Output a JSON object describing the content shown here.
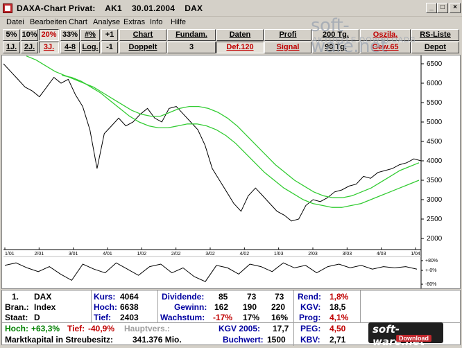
{
  "window": {
    "title": "DAXA-Chart Privat:    AK1    30.01.2004    DAX"
  },
  "menu": [
    "Datei",
    "Bearbeiten",
    "Chart",
    "Analyse",
    "Extras",
    "Info",
    "Hilfe"
  ],
  "toolbar_row1": [
    "5%",
    "10%",
    "20%",
    "33%",
    "#%",
    "+1",
    "Chart",
    "Fundam.",
    "Daten",
    "Profi",
    "200 Tg.",
    "Oszila.",
    "RS-Liste"
  ],
  "toolbar_row2": [
    "1J.",
    "2J.",
    "3J.",
    "4-8",
    "Log.",
    "-1",
    "Doppelt",
    "3",
    "Def.120",
    "Signal",
    "90 Tg.",
    "Gew.65",
    "Depot"
  ],
  "watermark": {
    "main": "soft-ware.net",
    "sub": "AKTUELLE DOWNLOADS"
  },
  "chart_data": {
    "type": "line",
    "x_ticks": [
      "1/01",
      "2/01",
      "3/01",
      "4/01",
      "1/02",
      "2/02",
      "3/02",
      "4/02",
      "1/03",
      "2/03",
      "3/03",
      "4/03",
      "1/04"
    ],
    "y_ticks": [
      "6500",
      "6000",
      "5500",
      "5000",
      "4500",
      "4000",
      "3500",
      "3000",
      "2500",
      "2000"
    ],
    "ylim": [
      2000,
      6500
    ],
    "series": [
      {
        "color": "#000000",
        "values": [
          6500,
          6300,
          6100,
          5900,
          5800,
          5650,
          5900,
          6150,
          6000,
          6100,
          5700,
          5400,
          4800,
          3800,
          4700,
          4900,
          5100,
          4900,
          5000,
          5200,
          5350,
          5100,
          5000,
          5350,
          5400,
          5200,
          5000,
          4800,
          4400,
          3800,
          3500,
          3200,
          2900,
          2700,
          3100,
          3300,
          3100,
          2900,
          2700,
          2600,
          2450,
          2500,
          2850,
          3000,
          2950,
          3050,
          3200,
          3250,
          3350,
          3400,
          3600,
          3550,
          3700,
          3750,
          3800,
          3900,
          3950,
          4050,
          4000
        ]
      },
      {
        "color": "#33cc33",
        "values": [
          6700,
          6600,
          6450,
          6300,
          6200,
          6100,
          6000,
          5900,
          5750,
          5600,
          5450,
          5300,
          5200,
          5150,
          5150,
          5250,
          5350,
          5400,
          5400,
          5350,
          5250,
          5100,
          4900,
          4650,
          4400,
          4150,
          3900,
          3700,
          3500,
          3350,
          3200,
          3100,
          3050,
          3050,
          3100,
          3200,
          3300,
          3450,
          3600,
          3750,
          3850,
          3950
        ]
      },
      {
        "color": "#33cc33",
        "values": [
          6200,
          6150,
          6050,
          5900,
          5750,
          5550,
          5350,
          5150,
          5000,
          4900,
          4850,
          4850,
          4900,
          4950,
          4950,
          4900,
          4800,
          4650,
          4450,
          4200,
          3950,
          3700,
          3500,
          3300,
          3150,
          3000,
          2900,
          2850,
          2800,
          2800,
          2850,
          2900,
          3000,
          3100,
          3200,
          3300,
          3400,
          3500
        ]
      }
    ],
    "oscillator": {
      "labels": [
        "+80%",
        "+-0%",
        "-80%"
      ],
      "values": [
        0.4,
        0.6,
        0.2,
        -0.1,
        0.3,
        -0.3,
        -0.8,
        0.5,
        0.1,
        -0.2,
        0.6,
        0.1,
        -0.4,
        0.3,
        0.5,
        -0.2,
        0.2,
        -0.5,
        -0.9,
        0.4,
        0.2,
        -0.3,
        0.5,
        0.3,
        -0.1,
        0.6,
        0.2,
        0.4,
        -0.2,
        0.3,
        0.5,
        0.2,
        0.4,
        0.1,
        0.3,
        0.2,
        0.3,
        0.1
      ]
    }
  },
  "info": {
    "row1": {
      "num": "1.",
      "name": "DAX",
      "kurs_label": "Kurs:",
      "kurs": "4064",
      "div_label": "Dividende:",
      "div": [
        "85",
        "73",
        "73"
      ],
      "rend_label": "Rend:",
      "rend": "1,8%"
    },
    "row2": {
      "label": "Bran.:",
      "value": "Index",
      "hoch_label": "Hoch:",
      "hoch": "6638",
      "gewinn_label": "Gewinn:",
      "gewinn": [
        "162",
        "190",
        "220"
      ],
      "kgv_label": "KGV:",
      "kgv": "18,5"
    },
    "row3": {
      "label": "Staat:",
      "value": "D",
      "tief_label": "Tief:",
      "tief": "2403",
      "wachstum_label": "Wachstum:",
      "wachstum": [
        "-17%",
        "17%",
        "16%"
      ],
      "prog_label": "Prog:",
      "prog": "4,1%"
    },
    "row4": {
      "hoch_label": "Hoch:",
      "hoch_val": "+63,3%",
      "tief_label": "Tief:",
      "tief_val": "-40,9%",
      "haupt": "Hauptvers.:",
      "kgv2005_label": "KGV 2005:",
      "kgv2005": "17,7",
      "peg_label": "PEG:",
      "peg": "4,50"
    },
    "row5": {
      "label": "Marktkapital in Streubesitz:",
      "value": "341.376 Mio.",
      "buchwert_label": "Buchwert:",
      "buchwert": "1500",
      "kbv_label": "KBV:",
      "kbv": "2,71"
    }
  },
  "badge": {
    "text": "soft-ware.net",
    "sub": "Download"
  }
}
